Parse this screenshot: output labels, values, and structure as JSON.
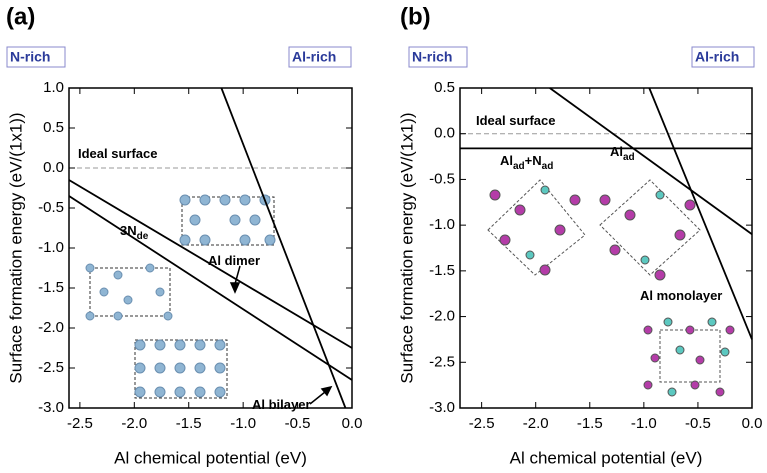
{
  "chart_data": [
    {
      "type": "line",
      "title": "(a)",
      "left_label": "N-rich",
      "right_label": "Al-rich",
      "x_label": "Al chemical potential (eV)",
      "y_label": "Surface formation energy (eV/(1x1))",
      "xlim": [
        -2.6,
        0
      ],
      "ylim": [
        -3,
        1
      ],
      "xticks": [
        -2.5,
        {
          "value": -2,
          "label": "-2.0"
        },
        -1.5,
        {
          "value": -1,
          "label": "-1.0"
        },
        -0.5,
        {
          "value": 0,
          "label": "0.0"
        }
      ],
      "yticks": [
        {
          "value": 1,
          "label": "1.0"
        },
        0.5,
        {
          "value": 0,
          "label": "0.0"
        },
        -0.5,
        {
          "value": -1,
          "label": "-1.0"
        },
        -1.5,
        {
          "value": -2,
          "label": "-2.0"
        },
        -2.5,
        {
          "value": -3,
          "label": "-3.0"
        }
      ],
      "series": [
        {
          "color": "#999999",
          "style": "dashed",
          "x": [
            -2.6,
            0
          ],
          "values": [
            0,
            0
          ]
        },
        {
          "color": "#000000",
          "style": "solid",
          "x": [
            -2.6,
            0
          ],
          "values": [
            -0.15,
            -2.25
          ]
        },
        {
          "color": "#000000",
          "style": "solid",
          "x": [
            -2.6,
            0
          ],
          "values": [
            -0.35,
            -2.65
          ]
        },
        {
          "color": "#000000",
          "style": "solid",
          "x": [
            -1.2,
            -0.06
          ],
          "values": [
            1,
            -3
          ]
        }
      ],
      "annotations": [
        {
          "parts": [
            "Ideal surface"
          ]
        },
        {
          "parts": [
            "3N",
            "de"
          ]
        },
        {
          "parts": [
            "Al dimer"
          ]
        },
        {
          "parts": [
            "Al bilayer"
          ]
        }
      ]
    },
    {
      "type": "line",
      "title": "(b)",
      "left_label": "N-rich",
      "right_label": "Al-rich",
      "x_label": "Al chemical potential (eV)",
      "y_label": "Surface formation energy (eV/(1x1))",
      "xlim": [
        -2.7,
        0
      ],
      "ylim": [
        -3,
        0.5
      ],
      "xticks": [
        -2.5,
        {
          "value": -2,
          "label": "-2.0"
        },
        -1.5,
        {
          "value": -1,
          "label": "-1.0"
        },
        -0.5,
        {
          "value": 0,
          "label": "0.0"
        }
      ],
      "yticks": [
        0.5,
        {
          "value": 0,
          "label": "0.0"
        },
        -0.5,
        {
          "value": -1,
          "label": "-1.0"
        },
        -1.5,
        {
          "value": -2,
          "label": "-2.0"
        },
        -2.5,
        {
          "value": -3,
          "label": "-3.0"
        }
      ],
      "series": [
        {
          "color": "#999999",
          "style": "dashed",
          "x": [
            -2.7,
            0
          ],
          "values": [
            0,
            0
          ]
        },
        {
          "color": "#000000",
          "style": "solid",
          "x": [
            -2.7,
            0
          ],
          "values": [
            -0.16,
            -0.16
          ]
        },
        {
          "color": "#000000",
          "style": "solid",
          "x": [
            -1.87,
            0
          ],
          "values": [
            0.5,
            -1.1
          ]
        },
        {
          "color": "#000000",
          "style": "solid",
          "x": [
            -0.95,
            0
          ],
          "values": [
            0.5,
            -2.25
          ]
        }
      ],
      "annotations": [
        {
          "parts": [
            "Ideal surface"
          ]
        },
        {
          "parts": [
            "Al",
            "ad",
            "+N",
            "ad"
          ]
        },
        {
          "parts": [
            "Al",
            "ad"
          ]
        },
        {
          "parts": [
            "Al monolayer"
          ]
        }
      ]
    }
  ]
}
